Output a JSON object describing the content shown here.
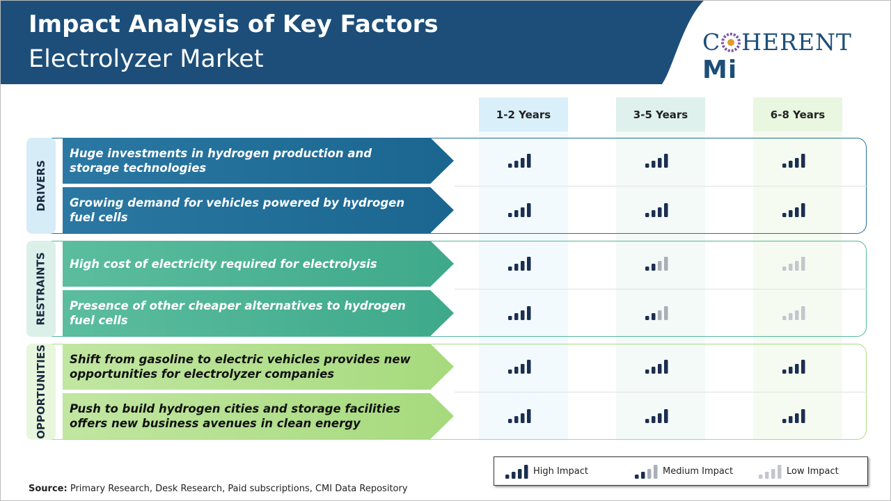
{
  "header": {
    "title": "Impact Analysis of Key Factors",
    "subtitle": "Electrolyzer Market"
  },
  "logo": {
    "first": "C",
    "rest": "HERENT",
    "mark": "Mi"
  },
  "columns": [
    "1-2 Years",
    "3-5 Years",
    "6-8 Years"
  ],
  "groups": [
    {
      "label": "DRIVERS",
      "rows": [
        {
          "text": "Huge investments in hydrogen production and storage technologies",
          "impacts": [
            0,
            0,
            0
          ]
        },
        {
          "text": "Growing demand for vehicles powered by hydrogen fuel cells",
          "impacts": [
            0,
            0,
            0
          ]
        }
      ]
    },
    {
      "label": "RESTRAINTS",
      "rows": [
        {
          "text": "High cost of electricity required for electrolysis",
          "impacts": [
            0,
            1,
            2
          ]
        },
        {
          "text": "Presence of other cheaper alternatives to hydrogen fuel cells",
          "impacts": [
            0,
            1,
            2
          ]
        }
      ]
    },
    {
      "label": "OPPORTUNITIES",
      "rows": [
        {
          "text": "Shift from gasoline to electric vehicles provides new opportunities for electrolyzer companies",
          "impacts": [
            0,
            0,
            0
          ]
        },
        {
          "text": "Push to build hydrogen cities and storage facilities offers new business avenues in clean energy",
          "impacts": [
            0,
            0,
            0
          ]
        }
      ]
    }
  ],
  "legend": [
    "High Impact",
    "Medium Impact",
    "Low Impact"
  ],
  "source": {
    "label": "Source:",
    "text": "Primary Research, Desk Research, Paid subscriptions, CMI Data Repository"
  }
}
